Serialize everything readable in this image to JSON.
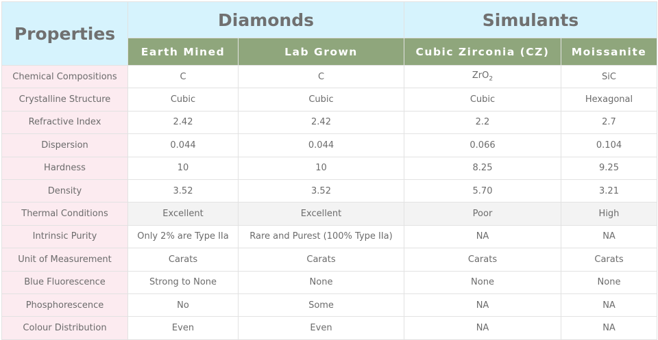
{
  "header": {
    "properties": "Properties",
    "groups": [
      "Diamonds",
      "Simulants"
    ],
    "columns": [
      "Earth Mined",
      "Lab Grown",
      "Cubic Zirconia (CZ)",
      "Moissanite"
    ]
  },
  "rows": [
    {
      "label": "Chemical Compositions",
      "values": [
        "C",
        "C",
        {
          "base": "ZrO",
          "sub": "2"
        },
        "SiC"
      ]
    },
    {
      "label": "Crystalline Structure",
      "values": [
        "Cubic",
        "Cubic",
        "Cubic",
        "Hexagonal"
      ]
    },
    {
      "label": "Refractive Index",
      "values": [
        "2.42",
        "2.42",
        "2.2",
        "2.7"
      ]
    },
    {
      "label": "Dispersion",
      "values": [
        "0.044",
        "0.044",
        "0.066",
        "0.104"
      ]
    },
    {
      "label": "Hardness",
      "values": [
        "10",
        "10",
        "8.25",
        "9.25"
      ]
    },
    {
      "label": "Density",
      "values": [
        "3.52",
        "3.52",
        "5.70",
        "3.21"
      ]
    },
    {
      "label": "Thermal Conditions",
      "values": [
        "Excellent",
        "Excellent",
        "Poor",
        "High"
      ]
    },
    {
      "label": "Intrinsic Purity",
      "values": [
        "Only 2% are Type IIa",
        "Rare and Purest (100% Type IIa)",
        "NA",
        "NA"
      ]
    },
    {
      "label": "Unit of Measurement",
      "values": [
        "Carats",
        "Carats",
        "Carats",
        "Carats"
      ]
    },
    {
      "label": "Blue Fluorescence",
      "values": [
        "Strong to None",
        "None",
        "None",
        "None"
      ]
    },
    {
      "label": "Phosphorescence",
      "values": [
        "No",
        "Some",
        "NA",
        "NA"
      ]
    },
    {
      "label": "Colour Distribution",
      "values": [
        "Even",
        "Even",
        "NA",
        "NA"
      ]
    }
  ],
  "colors": {
    "header_bg": "#d6f3fd",
    "subheader_bg": "#8fa67c",
    "label_bg": "#fcebf0",
    "highlight_row_bg": "#f3f3f3"
  }
}
